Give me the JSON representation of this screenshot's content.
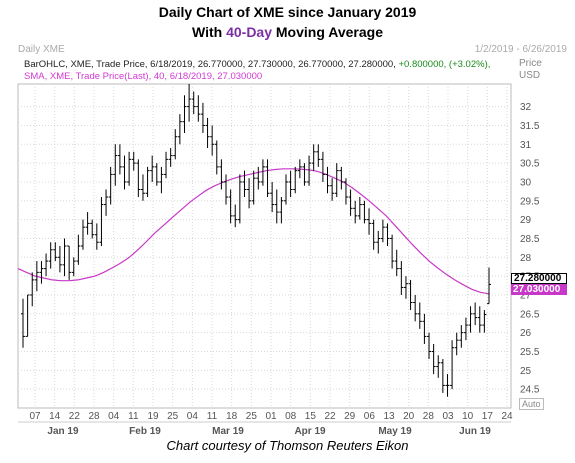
{
  "header": {
    "line1": "Daily Chart of XME since January 2019",
    "line2_pre": "With ",
    "line2_hl": "40-Day",
    "line2_post": " Moving Average"
  },
  "panel": {
    "symbol": "Daily XME",
    "date_range": "1/2/2019 - 6/26/2019",
    "ohlc_main": "BarOHLC, XME, Trade Price, 6/18/2019, 26.770000, 27.730000, 26.770000, 27.280000,",
    "ohlc_change": "+0.800000, (+3.02%),",
    "sma_label": "SMA, XME, Trade Price(Last), 40, 6/18/2019, 27.030000",
    "unit_price": "Price",
    "unit_currency": "USD",
    "auto": "Auto"
  },
  "tags": {
    "price": "27.280000",
    "sma": "27.030000"
  },
  "credit": "Chart courtesy of Thomson Reuters Eikon",
  "colors": {
    "bars": "#000000",
    "sma": "#c838c8",
    "grid": "#d8d8d8",
    "highlight": "#7b2fa5"
  },
  "chart_data": {
    "type": "line",
    "title": "Daily Chart of XME since January 2019",
    "subtitle": "With 40-Day Moving Average",
    "ylim": [
      24,
      32.6
    ],
    "yticks": [
      24.5,
      25,
      25.5,
      26,
      26.5,
      27,
      27.5,
      28,
      28.5,
      29,
      29.5,
      30,
      30.5,
      31,
      31.5,
      32
    ],
    "x_day_labels": [
      "07",
      "14",
      "22",
      "28",
      "04",
      "11",
      "19",
      "25",
      "04",
      "11",
      "18",
      "25",
      "01",
      "08",
      "15",
      "22",
      "29",
      "06",
      "13",
      "20",
      "28",
      "03",
      "10",
      "17",
      "24"
    ],
    "x_month_labels": [
      "Jan 19",
      "Feb 19",
      "Mar 19",
      "Apr 19",
      "May 19",
      "Jun 19"
    ],
    "grid": true,
    "ohlc": [
      [
        26.5,
        26.9,
        25.6,
        25.9
      ],
      [
        25.9,
        27.0,
        25.9,
        27.0
      ],
      [
        27.0,
        27.6,
        26.7,
        27.4
      ],
      [
        27.4,
        27.9,
        27.1,
        27.6
      ],
      [
        27.6,
        27.9,
        27.3,
        27.7
      ],
      [
        27.7,
        28.1,
        27.5,
        27.9
      ],
      [
        27.9,
        28.4,
        27.7,
        28.2
      ],
      [
        28.2,
        28.4,
        27.9,
        28.0
      ],
      [
        28.0,
        28.3,
        27.6,
        27.8
      ],
      [
        27.8,
        28.5,
        27.5,
        28.3
      ],
      [
        28.3,
        28.3,
        27.4,
        27.6
      ],
      [
        27.6,
        28.0,
        27.5,
        27.9
      ],
      [
        27.9,
        28.6,
        27.8,
        28.3
      ],
      [
        28.3,
        29.0,
        28.2,
        28.8
      ],
      [
        28.8,
        29.2,
        28.6,
        28.9
      ],
      [
        28.9,
        29.0,
        28.5,
        28.6
      ],
      [
        28.6,
        28.9,
        28.2,
        28.4
      ],
      [
        28.4,
        29.6,
        28.3,
        29.4
      ],
      [
        29.4,
        29.8,
        29.1,
        29.6
      ],
      [
        29.6,
        30.4,
        29.4,
        30.2
      ],
      [
        30.2,
        31.0,
        29.9,
        30.7
      ],
      [
        30.7,
        31.0,
        30.2,
        30.4
      ],
      [
        30.4,
        30.7,
        29.8,
        30.0
      ],
      [
        30.0,
        30.8,
        29.9,
        30.6
      ],
      [
        30.6,
        30.8,
        30.3,
        30.5
      ],
      [
        30.5,
        30.6,
        29.6,
        29.8
      ],
      [
        29.8,
        30.2,
        29.5,
        29.7
      ],
      [
        29.7,
        30.4,
        29.6,
        30.3
      ],
      [
        30.3,
        30.7,
        30.0,
        30.4
      ],
      [
        30.4,
        30.5,
        29.9,
        30.0
      ],
      [
        30.0,
        30.4,
        29.7,
        30.2
      ],
      [
        30.2,
        30.8,
        30.1,
        30.6
      ],
      [
        30.6,
        30.9,
        30.4,
        30.7
      ],
      [
        30.7,
        31.4,
        30.6,
        31.2
      ],
      [
        31.2,
        31.8,
        31.0,
        31.6
      ],
      [
        31.6,
        32.3,
        31.3,
        32.0
      ],
      [
        32.0,
        32.6,
        31.6,
        32.2
      ],
      [
        32.2,
        32.4,
        31.8,
        32.0
      ],
      [
        32.0,
        32.3,
        31.6,
        31.8
      ],
      [
        31.8,
        32.1,
        31.3,
        31.5
      ],
      [
        31.5,
        31.7,
        30.9,
        31.2
      ],
      [
        31.2,
        31.5,
        30.7,
        31.0
      ],
      [
        31.0,
        31.1,
        30.2,
        30.4
      ],
      [
        30.4,
        30.6,
        29.8,
        30.0
      ],
      [
        30.0,
        30.2,
        29.4,
        29.6
      ],
      [
        29.6,
        29.8,
        28.9,
        29.1
      ],
      [
        29.1,
        29.4,
        28.8,
        29.0
      ],
      [
        29.0,
        30.2,
        28.9,
        30.0
      ],
      [
        30.0,
        30.3,
        29.6,
        29.8
      ],
      [
        29.8,
        30.1,
        29.3,
        29.5
      ],
      [
        29.5,
        30.3,
        29.4,
        30.1
      ],
      [
        30.1,
        30.4,
        29.8,
        30.0
      ],
      [
        30.0,
        30.6,
        29.9,
        30.4
      ],
      [
        30.4,
        30.6,
        29.6,
        29.7
      ],
      [
        29.7,
        30.0,
        29.2,
        29.4
      ],
      [
        29.4,
        29.8,
        28.9,
        29.2
      ],
      [
        29.2,
        29.6,
        28.9,
        29.5
      ],
      [
        29.5,
        30.2,
        29.4,
        30.0
      ],
      [
        30.0,
        30.3,
        29.6,
        29.8
      ],
      [
        29.8,
        30.4,
        29.7,
        30.3
      ],
      [
        30.3,
        30.6,
        30.1,
        30.4
      ],
      [
        30.4,
        30.5,
        29.9,
        30.0
      ],
      [
        30.0,
        30.7,
        29.9,
        30.5
      ],
      [
        30.5,
        31.0,
        30.3,
        30.8
      ],
      [
        30.8,
        31.0,
        30.4,
        30.6
      ],
      [
        30.6,
        30.8,
        30.0,
        30.2
      ],
      [
        30.2,
        30.4,
        29.7,
        29.9
      ],
      [
        29.9,
        30.1,
        29.5,
        29.7
      ],
      [
        29.7,
        30.5,
        29.6,
        30.3
      ],
      [
        30.3,
        30.4,
        29.8,
        30.0
      ],
      [
        30.0,
        30.1,
        29.4,
        29.6
      ],
      [
        29.6,
        29.8,
        29.1,
        29.3
      ],
      [
        29.3,
        29.5,
        28.9,
        29.1
      ],
      [
        29.1,
        29.6,
        29.0,
        29.4
      ],
      [
        29.4,
        29.5,
        28.9,
        29.0
      ],
      [
        29.0,
        29.3,
        28.6,
        28.9
      ],
      [
        28.9,
        29.0,
        28.2,
        28.4
      ],
      [
        28.4,
        28.7,
        28.1,
        28.5
      ],
      [
        28.5,
        29.0,
        28.4,
        28.8
      ],
      [
        28.8,
        28.9,
        28.3,
        28.5
      ],
      [
        28.5,
        28.6,
        27.7,
        27.9
      ],
      [
        27.9,
        28.2,
        27.5,
        27.7
      ],
      [
        27.7,
        27.9,
        27.0,
        27.2
      ],
      [
        27.2,
        27.5,
        26.9,
        27.3
      ],
      [
        27.3,
        27.4,
        26.6,
        26.8
      ],
      [
        26.8,
        27.0,
        26.3,
        26.5
      ],
      [
        26.5,
        26.8,
        26.1,
        26.3
      ],
      [
        26.3,
        26.5,
        25.7,
        25.9
      ],
      [
        25.9,
        26.0,
        25.3,
        25.5
      ],
      [
        25.5,
        25.7,
        24.9,
        25.1
      ],
      [
        25.1,
        25.4,
        24.8,
        25.2
      ],
      [
        25.2,
        25.3,
        24.4,
        24.6
      ],
      [
        24.6,
        24.9,
        24.3,
        24.6
      ],
      [
        24.6,
        25.8,
        24.5,
        25.6
      ],
      [
        25.6,
        26.0,
        25.4,
        25.8
      ],
      [
        25.8,
        26.2,
        25.6,
        26.0
      ],
      [
        26.0,
        26.4,
        25.8,
        26.2
      ],
      [
        26.2,
        26.7,
        26.0,
        26.5
      ],
      [
        26.5,
        26.8,
        26.2,
        26.4
      ],
      [
        26.4,
        26.7,
        26.0,
        26.2
      ],
      [
        26.2,
        26.6,
        26.0,
        26.48
      ],
      [
        26.77,
        27.73,
        26.77,
        27.28
      ]
    ],
    "sma40": [
      27.7,
      27.6,
      27.5,
      27.45,
      27.4,
      27.38,
      27.38,
      27.4,
      27.45,
      27.5,
      27.6,
      27.72,
      27.85,
      28.0,
      28.2,
      28.42,
      28.65,
      28.85,
      29.05,
      29.25,
      29.45,
      29.62,
      29.78,
      29.9,
      30.0,
      30.08,
      30.15,
      30.2,
      30.25,
      30.3,
      30.33,
      30.35,
      30.35,
      30.34,
      30.32,
      30.28,
      30.2,
      30.1,
      30.0,
      29.85,
      29.68,
      29.5,
      29.3,
      29.1,
      28.85,
      28.6,
      28.35,
      28.12,
      27.9,
      27.72,
      27.55,
      27.4,
      27.27,
      27.15,
      27.07,
      27.03
    ]
  }
}
